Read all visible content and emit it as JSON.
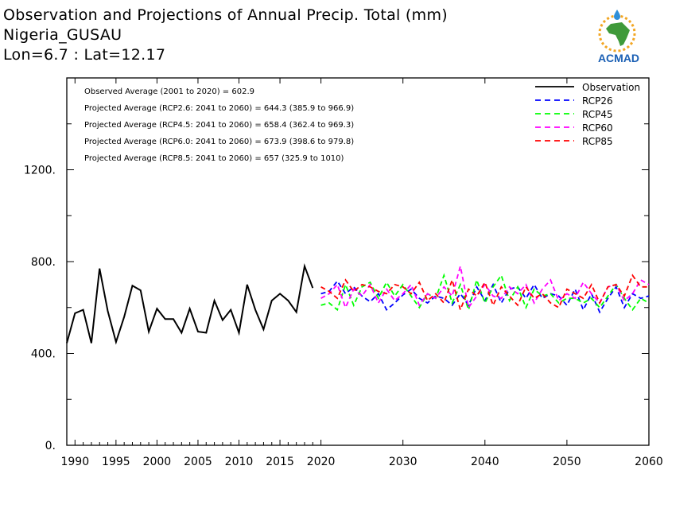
{
  "header": {
    "title": "Observation and Projections of Annual Precip. Total (mm)",
    "location": "Nigeria_GUSAU",
    "coords": "Lon=6.7 : Lat=12.17"
  },
  "logo": {
    "text": "ACMAD",
    "icon": "acmad-africa-logo-icon"
  },
  "colors": {
    "observation": "#000000",
    "RCP26": "#0000ff",
    "RCP45": "#00ff00",
    "RCP60": "#ff00ff",
    "RCP85": "#ff0000"
  },
  "chart_data": {
    "type": "line",
    "xlim": [
      1989,
      2060
    ],
    "ylim": [
      0,
      1600
    ],
    "x_ticks": [
      1990,
      1995,
      2000,
      2005,
      2010,
      2015,
      2020,
      2030,
      2040,
      2050,
      2060
    ],
    "y_ticks": [
      0,
      400,
      800,
      1200
    ],
    "y_tick_labels": [
      "0.",
      "400.",
      "800.",
      "1200."
    ],
    "annotations": [
      "Observed Average (2001 to 2020) = 602.9",
      "Projected Average (RCP2.6: 2041 to 2060) = 644.3 (385.9 to 966.9)",
      "Projected Average (RCP4.5: 2041 to 2060) = 658.4 (362.4 to 969.3)",
      "Projected Average (RCP6.0: 2041 to 2060) = 673.9 (398.6 to 979.8)",
      "Projected Average (RCP8.5: 2041 to 2060) = 657 (325.9 to 1010)"
    ],
    "legend": {
      "position": "top-right",
      "entries": [
        "Observation",
        "RCP26",
        "RCP45",
        "RCP60",
        "RCP85"
      ]
    },
    "series": [
      {
        "name": "Observation",
        "style": "solid",
        "x": [
          1989,
          1990,
          1991,
          1992,
          1993,
          1994,
          1995,
          1996,
          1997,
          1998,
          1999,
          2000,
          2001,
          2002,
          2003,
          2004,
          2005,
          2006,
          2007,
          2008,
          2009,
          2010,
          2011,
          2012,
          2013,
          2014,
          2015,
          2016,
          2017,
          2018,
          2019
        ],
        "values": [
          445,
          575,
          590,
          445,
          770,
          585,
          450,
          560,
          695,
          675,
          495,
          595,
          550,
          550,
          490,
          595,
          495,
          490,
          630,
          545,
          590,
          490,
          700,
          590,
          505,
          630,
          660,
          630,
          580,
          780,
          685
        ]
      },
      {
        "name": "RCP26",
        "style": "dashed",
        "x": [
          2020,
          2021,
          2022,
          2023,
          2024,
          2025,
          2026,
          2027,
          2028,
          2029,
          2030,
          2031,
          2032,
          2033,
          2034,
          2035,
          2036,
          2037,
          2038,
          2039,
          2040,
          2041,
          2042,
          2043,
          2044,
          2045,
          2046,
          2047,
          2048,
          2049,
          2050,
          2051,
          2052,
          2053,
          2054,
          2055,
          2056,
          2057,
          2058,
          2059,
          2060
        ],
        "values": [
          660,
          670,
          715,
          660,
          690,
          650,
          625,
          660,
          590,
          620,
          655,
          680,
          640,
          620,
          650,
          640,
          610,
          660,
          610,
          690,
          630,
          700,
          620,
          680,
          690,
          640,
          700,
          640,
          660,
          650,
          610,
          680,
          590,
          660,
          580,
          640,
          690,
          600,
          660,
          640,
          650
        ]
      },
      {
        "name": "RCP45",
        "style": "dashed",
        "x": [
          2020,
          2021,
          2022,
          2023,
          2024,
          2025,
          2026,
          2027,
          2028,
          2029,
          2030,
          2031,
          2032,
          2033,
          2034,
          2035,
          2036,
          2037,
          2038,
          2039,
          2040,
          2041,
          2042,
          2043,
          2044,
          2045,
          2046,
          2047,
          2048,
          2049,
          2050,
          2051,
          2052,
          2053,
          2054,
          2055,
          2056,
          2057,
          2058,
          2059,
          2060
        ],
        "values": [
          610,
          620,
          590,
          700,
          610,
          690,
          710,
          640,
          710,
          650,
          700,
          650,
          600,
          660,
          640,
          740,
          620,
          700,
          590,
          720,
          620,
          690,
          740,
          630,
          690,
          600,
          680,
          650,
          660,
          620,
          640,
          640,
          620,
          640,
          600,
          650,
          700,
          640,
          590,
          640,
          620
        ]
      },
      {
        "name": "RCP60",
        "style": "dashed",
        "x": [
          2020,
          2021,
          2022,
          2023,
          2024,
          2025,
          2026,
          2027,
          2028,
          2029,
          2030,
          2031,
          2032,
          2033,
          2034,
          2035,
          2036,
          2037,
          2038,
          2039,
          2040,
          2041,
          2042,
          2043,
          2044,
          2045,
          2046,
          2047,
          2048,
          2049,
          2050,
          2051,
          2052,
          2053,
          2054,
          2055,
          2056,
          2057,
          2058,
          2059,
          2060
        ],
        "values": [
          640,
          660,
          700,
          600,
          680,
          650,
          700,
          620,
          680,
          630,
          660,
          700,
          610,
          660,
          640,
          690,
          650,
          780,
          600,
          650,
          700,
          650,
          640,
          690,
          660,
          700,
          620,
          680,
          720,
          630,
          660,
          640,
          710,
          660,
          620,
          690,
          700,
          630,
          660,
          720,
          700
        ]
      },
      {
        "name": "RCP85",
        "style": "dashed",
        "x": [
          2020,
          2021,
          2022,
          2023,
          2024,
          2025,
          2026,
          2027,
          2028,
          2029,
          2030,
          2031,
          2032,
          2033,
          2034,
          2035,
          2036,
          2037,
          2038,
          2039,
          2040,
          2041,
          2042,
          2043,
          2044,
          2045,
          2046,
          2047,
          2048,
          2049,
          2050,
          2051,
          2052,
          2053,
          2054,
          2055,
          2056,
          2057,
          2058,
          2059,
          2060
        ],
        "values": [
          690,
          670,
          640,
          720,
          670,
          700,
          690,
          670,
          660,
          700,
          690,
          660,
          710,
          630,
          660,
          620,
          720,
          590,
          680,
          650,
          710,
          610,
          690,
          650,
          610,
          690,
          640,
          660,
          620,
          600,
          680,
          660,
          640,
          700,
          620,
          690,
          700,
          650,
          740,
          690,
          690
        ]
      }
    ]
  }
}
